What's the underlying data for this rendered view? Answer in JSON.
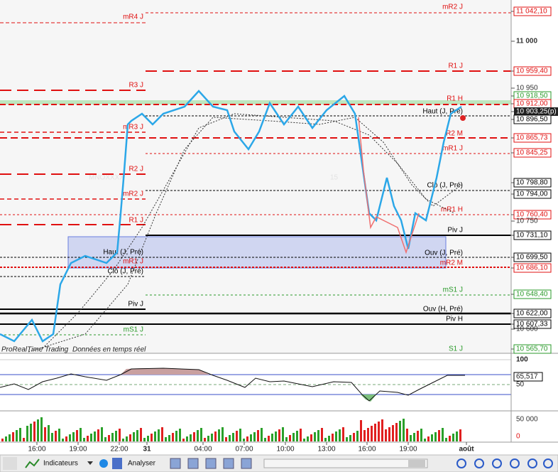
{
  "chart": {
    "watermark": [
      "MNOXXXX",
      "15"
    ],
    "level_labels": [
      "mR2 J",
      "mR4 J",
      "R1 J",
      "R3 J",
      "R1 H",
      "Haut (J, Pré)",
      "R2 M",
      "mR3 J",
      "mR1 J",
      "R2 J",
      "Clô (J, Pré)",
      "mR2 J",
      "mR1 H",
      "R1 J",
      "Piv J",
      "Haut (J, Pré)",
      "Ouv (J, Pré)",
      "mR1 J",
      "mR2 M",
      "Clô (J, Pré)",
      "mS1 J",
      "Piv J",
      "Ouv (H, Pré)",
      "Piv H",
      "mS1 J",
      "S1 J"
    ],
    "footer": {
      "source": "ProRealTime Trading",
      "status": "Données en temps réel"
    }
  },
  "price_axis": [
    "11 042,10",
    "11 000",
    "10 959,40",
    "10 950",
    "10 918,50",
    "10 912,00",
    "10 903,25(p)",
    "10 896,50",
    "10 865,73",
    "10 845,25",
    "10 798,80",
    "10 794,00",
    "10 760,40",
    "10 750",
    "10 731,10",
    "10 699,50",
    "10 686,10",
    "10 648,40",
    "10 622,00",
    "10 607,33",
    "10 600",
    "10 565,70"
  ],
  "indicator_axis": [
    "100",
    "65,517",
    "50"
  ],
  "volume_axis": [
    "50 000",
    "0"
  ],
  "time_axis": [
    "16:00",
    "19:00",
    "22:00",
    "31",
    "04:00",
    "07:00",
    "10:00",
    "13:00",
    "16:00",
    "19:00",
    "août"
  ],
  "toolbar": {
    "indicators": "Indicateurs",
    "analyse": "Analyser"
  }
}
